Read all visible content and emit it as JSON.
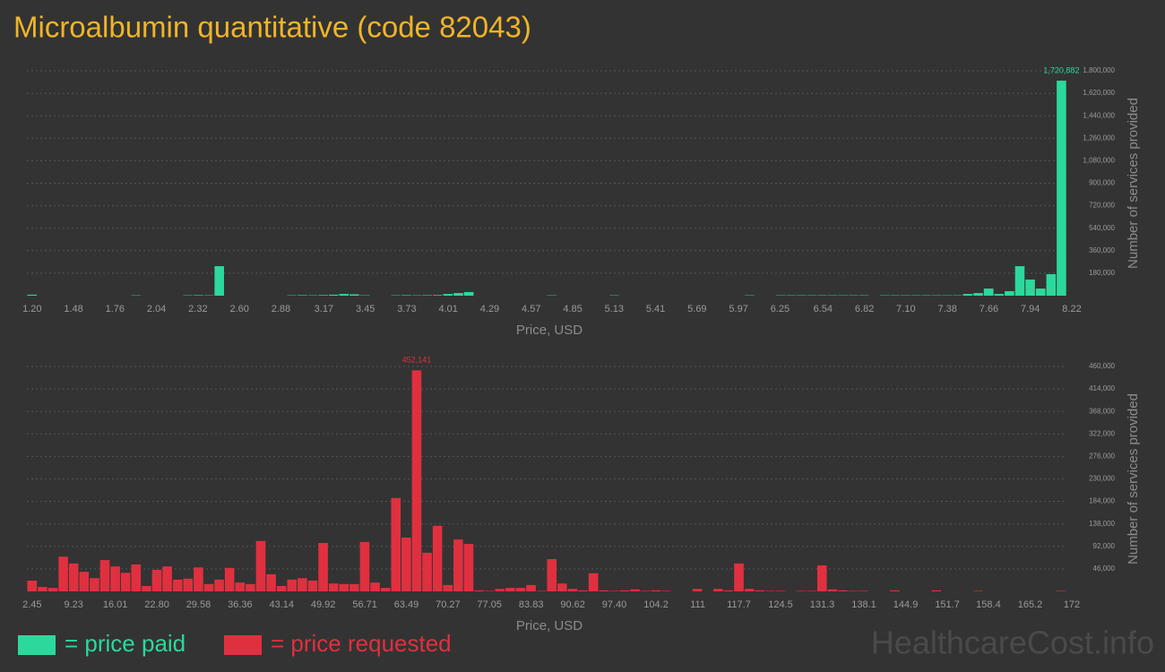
{
  "title": "Microalbumin quantitative (code 82043)",
  "chart_data": [
    {
      "type": "histogram",
      "color": "#2bd99c",
      "xlabel": "Price, USD",
      "ylabel": "Number of services provided",
      "grid": true,
      "bins": [
        1.165,
        1.235,
        1.305,
        1.376,
        1.446,
        1.516,
        1.586,
        1.656,
        1.727,
        1.797,
        1.867,
        1.937,
        2.007,
        2.078,
        2.148,
        2.218,
        2.288,
        2.358,
        2.429,
        2.499,
        2.569,
        2.639,
        2.709,
        2.78,
        2.85,
        2.92,
        2.99,
        3.06,
        3.131,
        3.201,
        3.271,
        3.341,
        3.411,
        3.482,
        3.552,
        3.622,
        3.692,
        3.762,
        3.833,
        3.903,
        3.973,
        4.043,
        4.113,
        4.184,
        4.254,
        4.324,
        4.394,
        4.464,
        4.535,
        4.605,
        4.675,
        4.745,
        4.815,
        4.886,
        4.956,
        5.026,
        5.096,
        5.166,
        5.237,
        5.307,
        5.377,
        5.447,
        5.517,
        5.588,
        5.658,
        5.728,
        5.798,
        5.868,
        5.939,
        6.009,
        6.079,
        6.149,
        6.219,
        6.29,
        6.36,
        6.43,
        6.5,
        6.57,
        6.641,
        6.711,
        6.781,
        6.851,
        6.921,
        6.992,
        7.062,
        7.132,
        7.202,
        7.272,
        7.343,
        7.413,
        7.483,
        7.553,
        7.623,
        7.694,
        7.764,
        7.834,
        7.904,
        7.974,
        8.045,
        8.115,
        8.185
      ],
      "values": [
        8000,
        0,
        0,
        0,
        0,
        0,
        0,
        0,
        0,
        0,
        3000,
        0,
        0,
        0,
        0,
        3000,
        4000,
        3000,
        236000,
        0,
        0,
        0,
        0,
        0,
        0,
        3000,
        4000,
        3000,
        5000,
        8000,
        14000,
        11000,
        3000,
        0,
        0,
        3000,
        4000,
        3000,
        4000,
        5000,
        14000,
        21000,
        29000,
        0,
        0,
        0,
        0,
        0,
        0,
        0,
        3000,
        0,
        0,
        0,
        0,
        0,
        3000,
        0,
        0,
        0,
        0,
        0,
        0,
        0,
        0,
        0,
        0,
        0,
        0,
        3000,
        0,
        0,
        3000,
        3000,
        3000,
        3000,
        3000,
        3000,
        3000,
        3000,
        3000,
        0,
        3000,
        3000,
        3000,
        3000,
        3000,
        3000,
        3000,
        3000,
        14000,
        21000,
        57000,
        14000,
        36000,
        236000,
        129000,
        57000,
        172000,
        1720882
      ],
      "value_labels": [
        null,
        null,
        null,
        null,
        null,
        null,
        null,
        null,
        null,
        null,
        null,
        null,
        null,
        null,
        null,
        null,
        null,
        null,
        null,
        null,
        null,
        null,
        null,
        null,
        null,
        null,
        null,
        null,
        null,
        null,
        null,
        null,
        null,
        null,
        null,
        null,
        null,
        null,
        null,
        null,
        null,
        null,
        null,
        null,
        null,
        null,
        null,
        null,
        null,
        null,
        null,
        null,
        null,
        null,
        null,
        null,
        null,
        null,
        null,
        null,
        null,
        null,
        null,
        null,
        null,
        null,
        null,
        null,
        null,
        null,
        null,
        null,
        null,
        null,
        null,
        null,
        null,
        null,
        null,
        null,
        null,
        null,
        null,
        null,
        null,
        null,
        null,
        null,
        null,
        null,
        null,
        null,
        null,
        null,
        null,
        null,
        null,
        null,
        null,
        "1,720,882"
      ],
      "xlim": [
        1.165,
        8.22
      ],
      "xticks": [
        {
          "value": 1.2,
          "label": "1.20"
        },
        1.48,
        1.76,
        2.04,
        2.32,
        {
          "value": 2.6,
          "label": "2.60"
        },
        2.88,
        3.17,
        3.45,
        3.73,
        4.01,
        4.29,
        4.57,
        4.85,
        5.13,
        5.41,
        5.69,
        5.97,
        6.25,
        6.54,
        6.82,
        {
          "value": 7.1,
          "label": "7.10"
        },
        7.38,
        7.66,
        7.94,
        8.22
      ],
      "ylim": [
        0,
        1800000
      ],
      "yticks": [
        {
          "value": 180000,
          "label": "180,000"
        },
        {
          "value": 360000,
          "label": "360,000"
        },
        {
          "value": 540000,
          "label": "540,000"
        },
        {
          "value": 720000,
          "label": "720,000"
        },
        {
          "value": 900000,
          "label": "900,000"
        },
        {
          "value": 1080000,
          "label": "1,080,000"
        },
        {
          "value": 1260000,
          "label": "1,260,000"
        },
        {
          "value": 1440000,
          "label": "1,440,000"
        },
        {
          "value": 1620000,
          "label": "1,620,000"
        },
        {
          "value": 1800000,
          "label": "1,800,000"
        }
      ]
    },
    {
      "type": "histogram",
      "color": "#e0303f",
      "xlabel": "Price, USD",
      "ylabel": "Number of services provided",
      "grid": true,
      "bins": [
        1.6,
        3.3,
        4.99,
        6.69,
        8.38,
        10.08,
        11.77,
        13.47,
        15.16,
        16.86,
        18.55,
        20.25,
        21.94,
        23.64,
        25.33,
        27.03,
        28.72,
        30.42,
        32.11,
        33.81,
        35.5,
        37.2,
        38.89,
        40.59,
        42.28,
        43.98,
        45.67,
        47.37,
        49.06,
        50.76,
        52.45,
        54.15,
        55.84,
        57.54,
        59.23,
        60.93,
        62.62,
        64.32,
        66.01,
        67.71,
        69.4,
        71.1,
        72.79,
        74.49,
        76.18,
        77.88,
        79.57,
        81.27,
        82.96,
        84.66,
        86.35,
        88.05,
        89.74,
        91.44,
        93.13,
        94.83,
        96.52,
        98.22,
        99.91,
        101.61,
        103.3,
        105.0,
        106.69,
        108.39,
        110.08,
        111.78,
        113.47,
        115.17,
        116.86,
        118.56,
        120.25,
        121.95,
        123.64,
        125.34,
        127.03,
        128.73,
        130.42,
        132.12,
        133.81,
        135.51,
        137.2,
        138.9,
        140.59,
        142.29,
        143.98,
        145.68,
        147.37,
        149.07,
        150.76,
        152.46,
        154.15,
        155.85,
        157.54,
        159.24,
        160.93,
        162.63,
        164.32,
        166.02,
        167.71,
        169.41,
        171.1
      ],
      "values": [
        22000,
        9000,
        7000,
        71000,
        57000,
        40000,
        27000,
        64000,
        51000,
        38000,
        55000,
        11000,
        44000,
        51000,
        24000,
        26000,
        49000,
        15000,
        24000,
        48000,
        18000,
        15000,
        103000,
        35000,
        11000,
        24000,
        27000,
        22000,
        99000,
        16000,
        15000,
        15000,
        101000,
        18000,
        7000,
        191000,
        110000,
        452141,
        79000,
        134000,
        13000,
        106000,
        97000,
        2000,
        1000,
        5000,
        7000,
        7000,
        13000,
        1000,
        66000,
        16000,
        5000,
        2000,
        37000,
        2000,
        1000,
        2000,
        4000,
        1000,
        2000,
        1000,
        0,
        0,
        5000,
        0,
        5000,
        2000,
        57000,
        5000,
        2000,
        1000,
        1000,
        0,
        1000,
        1000,
        53000,
        4000,
        2000,
        1000,
        1000,
        0,
        0,
        2000,
        0,
        0,
        0,
        2000,
        0,
        0,
        0,
        1000,
        0,
        0,
        0,
        0,
        0,
        0,
        0,
        1000
      ],
      "value_labels": [
        null,
        null,
        null,
        null,
        null,
        null,
        null,
        null,
        null,
        null,
        null,
        null,
        null,
        null,
        null,
        null,
        null,
        null,
        null,
        null,
        null,
        null,
        null,
        null,
        null,
        null,
        null,
        null,
        null,
        null,
        null,
        null,
        null,
        null,
        null,
        null,
        null,
        "452,141",
        null,
        null,
        null,
        null,
        null,
        null,
        null,
        null,
        null,
        null,
        null,
        null,
        null,
        null,
        null,
        null,
        null,
        null,
        null,
        null,
        null,
        null,
        null,
        null,
        null,
        null,
        null,
        null,
        null,
        null,
        null,
        null,
        null,
        null,
        null,
        null,
        null,
        null,
        null,
        null,
        null,
        null,
        null,
        null,
        null,
        null,
        null,
        null,
        null,
        null,
        null,
        null,
        null,
        null,
        null,
        null,
        null,
        null,
        null,
        null,
        null,
        null
      ],
      "xlim": [
        1.6,
        172
      ],
      "xticks": [
        2.45,
        9.23,
        16.01,
        {
          "value": 22.8,
          "label": "22.80"
        },
        29.58,
        36.36,
        43.14,
        49.92,
        56.71,
        63.49,
        70.27,
        77.05,
        83.83,
        90.62,
        {
          "value": 97.4,
          "label": "97.40"
        },
        104.2,
        111,
        117.7,
        124.5,
        131.3,
        138.1,
        144.9,
        151.7,
        158.4,
        165.2,
        172
      ],
      "ylim": [
        0,
        460000
      ],
      "yticks": [
        {
          "value": 46000,
          "label": "46,000"
        },
        {
          "value": 92000,
          "label": "92,000"
        },
        {
          "value": 138000,
          "label": "138,000"
        },
        {
          "value": 184000,
          "label": "184,000"
        },
        {
          "value": 230000,
          "label": "230,000"
        },
        {
          "value": 276000,
          "label": "276,000"
        },
        {
          "value": 322000,
          "label": "322,000"
        },
        {
          "value": 368000,
          "label": "368,000"
        },
        {
          "value": 414000,
          "label": "414,000"
        },
        {
          "value": 460000,
          "label": "460,000"
        }
      ]
    }
  ],
  "legend": {
    "items": [
      {
        "label": "= price paid",
        "color": "#2bd99c"
      },
      {
        "label": "= price requested",
        "color": "#e0303f"
      }
    ]
  },
  "watermark": "HealthcareCost.info"
}
